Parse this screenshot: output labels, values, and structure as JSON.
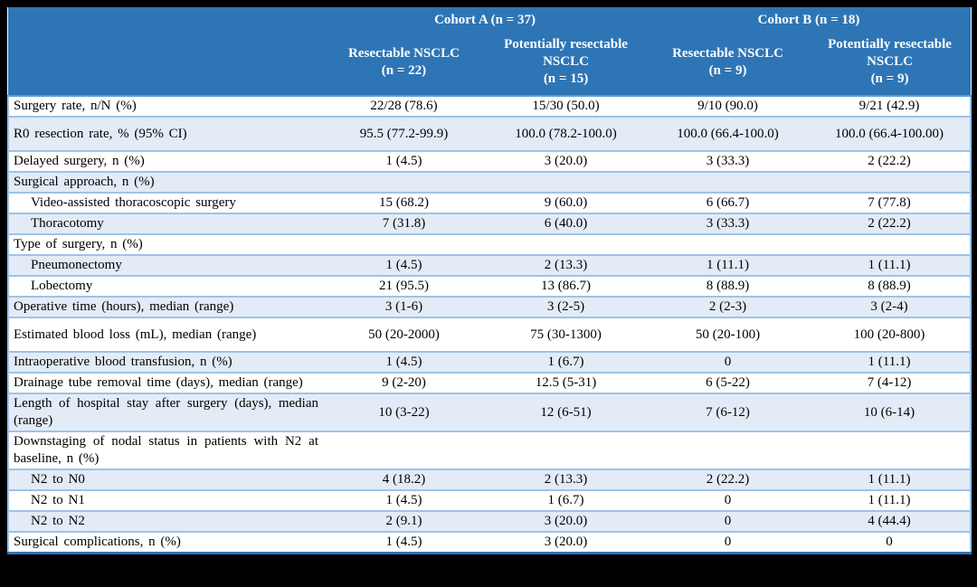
{
  "theme": {
    "header_bg": "#2e75b6",
    "header_text": "#ffffff",
    "row_alt_bg": "#e3ebf6",
    "row_bg": "#ffffff",
    "row_border": "#9dc3e6",
    "header_border": "#5b9bd5",
    "table_bottom": "#2e75b6",
    "frame": "#000000",
    "body_text": "#000000"
  },
  "table": {
    "cohorts": [
      {
        "label": "Cohort A (n = 37)"
      },
      {
        "label": "Cohort B (n = 18)"
      }
    ],
    "subcolumns": [
      {
        "label": "Resectable NSCLC",
        "n": "(n = 22)"
      },
      {
        "label": "Potentially resectable NSCLC",
        "n": "(n = 15)"
      },
      {
        "label": "Resectable NSCLC",
        "n": "(n = 9)"
      },
      {
        "label": "Potentially resectable NSCLC",
        "n": "(n = 9)"
      }
    ],
    "rows": [
      {
        "label": "Surgery rate, n/N (%)",
        "indent": false,
        "tall": false,
        "values": [
          "22/28 (78.6)",
          "15/30 (50.0)",
          "9/10 (90.0)",
          "9/21 (42.9)"
        ]
      },
      {
        "label": "R0 resection rate, % (95% CI)",
        "indent": false,
        "tall": true,
        "values": [
          "95.5 (77.2-99.9)",
          "100.0 (78.2-100.0)",
          "100.0 (66.4-100.0)",
          "100.0 (66.4-100.00)"
        ]
      },
      {
        "label": "Delayed surgery, n (%)",
        "indent": false,
        "tall": false,
        "values": [
          "1 (4.5)",
          "3 (20.0)",
          "3 (33.3)",
          "2 (22.2)"
        ]
      },
      {
        "label": "Surgical approach, n (%)",
        "indent": false,
        "tall": false,
        "values": [
          "",
          "",
          "",
          ""
        ]
      },
      {
        "label": "Video-assisted thoracoscopic surgery",
        "indent": true,
        "tall": false,
        "values": [
          "15 (68.2)",
          "9 (60.0)",
          "6 (66.7)",
          "7 (77.8)"
        ]
      },
      {
        "label": "Thoracotomy",
        "indent": true,
        "tall": false,
        "values": [
          "7 (31.8)",
          "6 (40.0)",
          "3 (33.3)",
          "2 (22.2)"
        ]
      },
      {
        "label": "Type of surgery, n (%)",
        "indent": false,
        "tall": false,
        "values": [
          "",
          "",
          "",
          ""
        ]
      },
      {
        "label": "Pneumonectomy",
        "indent": true,
        "tall": false,
        "values": [
          "1 (4.5)",
          "2 (13.3)",
          "1 (11.1)",
          "1 (11.1)"
        ]
      },
      {
        "label": "Lobectomy",
        "indent": true,
        "tall": false,
        "values": [
          "21 (95.5)",
          "13 (86.7)",
          "8 (88.9)",
          "8 (88.9)"
        ]
      },
      {
        "label": "Operative time (hours), median (range)",
        "indent": false,
        "tall": false,
        "values": [
          "3 (1-6)",
          "3 (2-5)",
          "2 (2-3)",
          "3 (2-4)"
        ]
      },
      {
        "label": "Estimated blood loss (mL), median (range)",
        "indent": false,
        "tall": true,
        "values": [
          "50 (20-2000)",
          "75 (30-1300)",
          "50 (20-100)",
          "100 (20-800)"
        ]
      },
      {
        "label": "Intraoperative blood transfusion, n (%)",
        "indent": false,
        "tall": false,
        "values": [
          "1 (4.5)",
          "1 (6.7)",
          "0",
          "1 (11.1)"
        ]
      },
      {
        "label": "Drainage tube removal time (days), median (range)",
        "indent": false,
        "tall": false,
        "values": [
          "9 (2-20)",
          "12.5 (5-31)",
          "6 (5-22)",
          "7 (4-12)"
        ]
      },
      {
        "label": "Length of hospital stay after surgery (days), median (range)",
        "indent": false,
        "tall": false,
        "values": [
          "10 (3-22)",
          "12 (6-51)",
          "7 (6-12)",
          "10 (6-14)"
        ]
      },
      {
        "label": "Downstaging of nodal status in patients with N2 at baseline, n (%)",
        "indent": false,
        "tall": false,
        "values": [
          "",
          "",
          "",
          ""
        ]
      },
      {
        "label": "N2 to N0",
        "indent": true,
        "tall": false,
        "values": [
          "4 (18.2)",
          "2 (13.3)",
          "2 (22.2)",
          "1 (11.1)"
        ]
      },
      {
        "label": "N2 to N1",
        "indent": true,
        "tall": false,
        "values": [
          "1 (4.5)",
          "1 (6.7)",
          "0",
          "1 (11.1)"
        ]
      },
      {
        "label": "N2 to N2",
        "indent": true,
        "tall": false,
        "values": [
          "2 (9.1)",
          "3 (20.0)",
          "0",
          "4 (44.4)"
        ]
      },
      {
        "label": "Surgical complications, n (%)",
        "indent": false,
        "tall": false,
        "values": [
          "1 (4.5)",
          "3 (20.0)",
          "0",
          "0"
        ]
      }
    ]
  }
}
